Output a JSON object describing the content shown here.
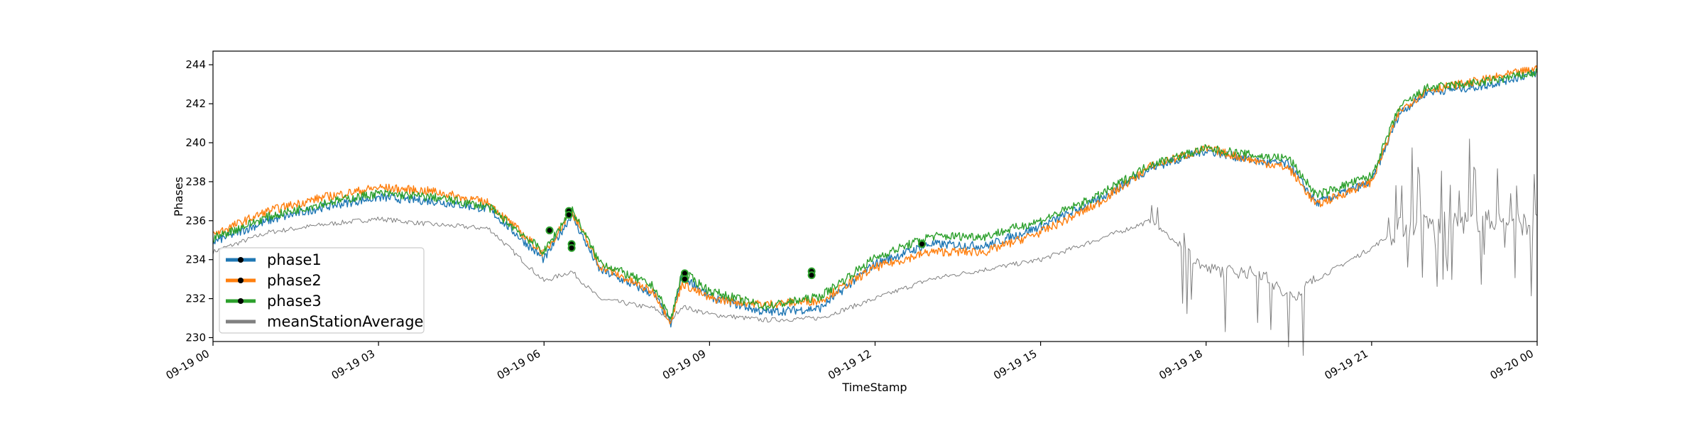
{
  "chart_data": {
    "type": "line",
    "title": "",
    "xlabel": "TimeStamp",
    "ylabel": "Phases",
    "xlim": [
      "09-19 00",
      "09-20 00"
    ],
    "ylim": [
      229.8,
      244.7
    ],
    "x_ticks": [
      "09-19 00",
      "09-19 03",
      "09-19 06",
      "09-19 09",
      "09-19 12",
      "09-19 15",
      "09-19 18",
      "09-19 21",
      "09-20 00"
    ],
    "y_ticks": [
      230,
      232,
      234,
      236,
      238,
      240,
      242,
      244
    ],
    "legend_position": "lower-left",
    "grid": false,
    "x_hours": [
      0,
      1,
      2,
      3,
      4,
      5,
      6,
      6.5,
      7,
      8,
      8.3,
      8.5,
      9,
      10,
      11,
      12,
      13,
      14,
      15,
      16,
      17,
      18,
      19,
      19.5,
      20,
      21,
      21.5,
      22,
      23,
      24
    ],
    "series": [
      {
        "name": "phase1",
        "color": "#1f77b4",
        "values": [
          234.9,
          236.0,
          236.7,
          237.2,
          237.0,
          236.6,
          234.0,
          236.3,
          233.5,
          232.2,
          230.7,
          233.2,
          232.1,
          231.3,
          231.5,
          233.8,
          234.8,
          234.7,
          235.7,
          237.0,
          238.7,
          239.6,
          239.0,
          238.9,
          236.9,
          238.0,
          241.5,
          242.6,
          242.9,
          243.6
        ]
      },
      {
        "name": "phase2",
        "color": "#ff7f0e",
        "values": [
          235.3,
          236.5,
          237.2,
          237.7,
          237.5,
          236.9,
          234.3,
          236.5,
          233.7,
          232.3,
          230.8,
          232.8,
          232.0,
          231.7,
          231.9,
          233.6,
          234.4,
          234.4,
          235.4,
          236.8,
          238.8,
          239.7,
          239.0,
          238.7,
          236.8,
          238.0,
          241.6,
          242.7,
          243.2,
          243.8
        ]
      },
      {
        "name": "phase3",
        "color": "#2ca02c",
        "values": [
          235.1,
          236.2,
          236.9,
          237.4,
          237.2,
          236.7,
          234.4,
          236.6,
          233.9,
          232.6,
          230.9,
          233.4,
          232.4,
          231.6,
          232.1,
          234.1,
          235.2,
          235.2,
          236.0,
          237.2,
          238.9,
          239.7,
          239.3,
          239.2,
          237.3,
          238.3,
          241.8,
          242.8,
          243.1,
          243.6
        ]
      },
      {
        "name": "meanStationAverage",
        "color": "#808080",
        "values": [
          234.4,
          235.4,
          235.8,
          236.1,
          235.8,
          235.6,
          232.9,
          233.4,
          232.0,
          231.5,
          230.9,
          231.6,
          231.2,
          230.9,
          231.0,
          232.0,
          233.0,
          233.5,
          234.0,
          235.0,
          236.0,
          233.5,
          233.3,
          232.0,
          233.0,
          234.6,
          235.6,
          235.8,
          236.0,
          235.8
        ]
      }
    ],
    "anomalies": [
      {
        "x_hour": 6.1,
        "values": [
          235.5,
          235.5
        ]
      },
      {
        "x_hour": 6.45,
        "values": [
          236.5,
          236.3
        ]
      },
      {
        "x_hour": 6.5,
        "values": [
          234.8,
          234.6
        ]
      },
      {
        "x_hour": 8.55,
        "values": [
          233.3,
          233.0
        ]
      },
      {
        "x_hour": 10.85,
        "values": [
          233.4,
          233.2
        ]
      },
      {
        "x_hour": 12.85,
        "values": [
          234.8
        ]
      }
    ]
  }
}
